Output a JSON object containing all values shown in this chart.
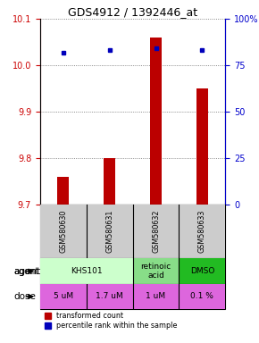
{
  "title": "GDS4912 / 1392446_at",
  "samples": [
    "GSM580630",
    "GSM580631",
    "GSM580632",
    "GSM580633"
  ],
  "bar_values": [
    9.76,
    9.8,
    10.06,
    9.95
  ],
  "percentile_values": [
    82,
    83,
    84,
    83
  ],
  "ylim_left": [
    9.7,
    10.1
  ],
  "ylim_right": [
    0,
    100
  ],
  "yticks_left": [
    9.7,
    9.8,
    9.9,
    10.0,
    10.1
  ],
  "yticks_right": [
    0,
    25,
    50,
    75,
    100
  ],
  "ytick_labels_right": [
    "0",
    "25",
    "50",
    "75",
    "100%"
  ],
  "bar_color": "#bb0000",
  "dot_color": "#0000bb",
  "agent_groups": [
    {
      "cols": [
        0,
        1
      ],
      "label": "KHS101",
      "color": "#ccffcc"
    },
    {
      "cols": [
        2
      ],
      "label": "retinoic\nacid",
      "color": "#88dd88"
    },
    {
      "cols": [
        3
      ],
      "label": "DMSO",
      "color": "#22bb22"
    }
  ],
  "dose_labels": [
    "5 uM",
    "1.7 uM",
    "1 uM",
    "0.1 %"
  ],
  "dose_color": "#dd66dd",
  "sample_bg_color": "#cccccc",
  "grid_color": "#666666",
  "left_tick_color": "#cc0000",
  "right_tick_color": "#0000cc",
  "bar_width": 0.25
}
